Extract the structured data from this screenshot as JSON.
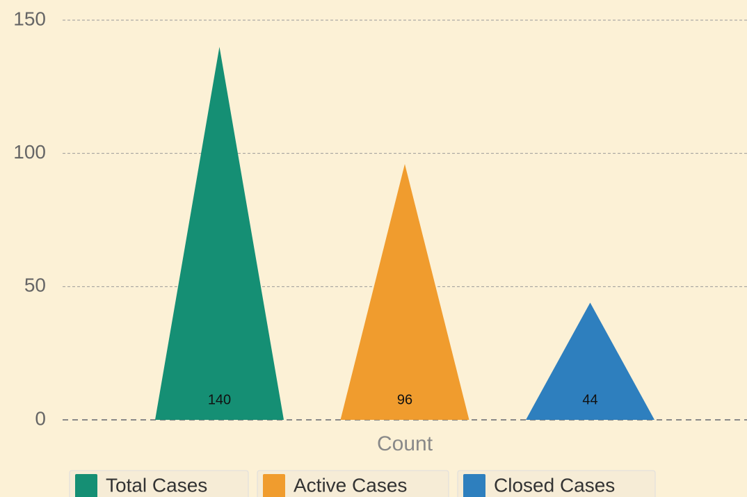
{
  "chart_data": {
    "type": "bar",
    "categories": [
      "Count"
    ],
    "series": [
      {
        "name": "Total Cases",
        "color": "#158f74",
        "values": [
          140
        ]
      },
      {
        "name": "Active Cases",
        "color": "#f09c2e",
        "values": [
          96
        ]
      },
      {
        "name": "Closed Cases",
        "color": "#2e7fbe",
        "values": [
          44
        ]
      }
    ],
    "ylim": [
      0,
      150
    ],
    "yticks": [
      0,
      50,
      100,
      150
    ],
    "grid": true,
    "legend": "bottom"
  }
}
